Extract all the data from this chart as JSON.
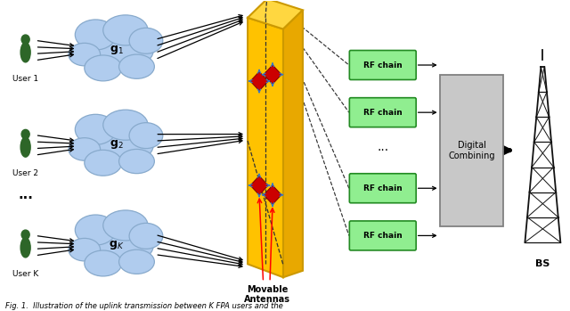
{
  "caption": "Fig. 1.  Illustration of the uplink transmission between K FPA users and the",
  "bg_color": "#ffffff",
  "user_labels": [
    "User 1",
    "User 2",
    "User K"
  ],
  "g_labels": [
    "$\\mathbf{g}_1$",
    "$\\mathbf{g}_2$",
    "$\\mathbf{g}_K$"
  ],
  "panel_color": "#FFC200",
  "panel_color_top": "#FFD740",
  "panel_color_side": "#E8A800",
  "panel_edge_color": "#cc9900",
  "rf_box_color": "#90EE90",
  "rf_box_edge_color": "#228B22",
  "rf_labels": [
    "RF chain",
    "RF chain",
    "RF chain",
    "RF chain"
  ],
  "digital_box_color": "#c8c8c8",
  "digital_box_edge_color": "#808080",
  "digital_label": "Digital\nCombining",
  "movable_label": "Movable\nAntennas",
  "bs_label": "BS",
  "cloud_color": "#b0ccee",
  "cloud_edge_color": "#88aacc",
  "tower_color": "#111111"
}
